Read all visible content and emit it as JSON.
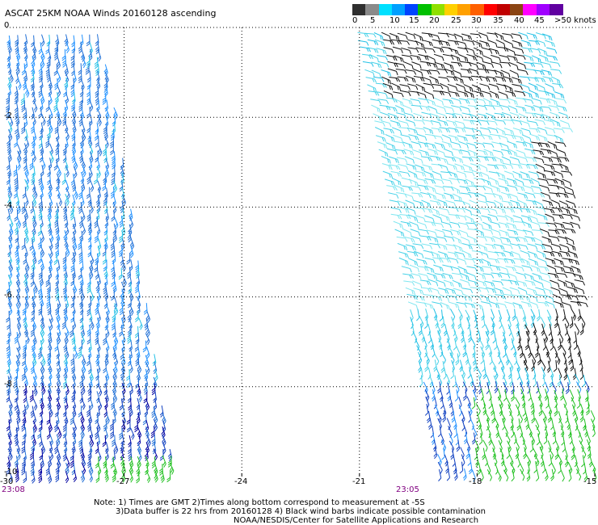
{
  "title": "ASCAT 25KM NOAA Winds 20160128 ascending",
  "colorbar": {
    "labels": [
      "0",
      "5",
      "10",
      "15",
      "20",
      "25",
      "30",
      "35",
      "40",
      "45",
      ">50 knots"
    ],
    "colors": [
      "#2f2f2f",
      "#8a8a8a",
      "#00e0ff",
      "#00a0ff",
      "#0044ff",
      "#00c000",
      "#90e000",
      "#ffd000",
      "#ffa000",
      "#ff6000",
      "#ff0000",
      "#c00000",
      "#8b4513",
      "#ff00ff",
      "#a000ff",
      "#6000a0"
    ]
  },
  "x_axis": {
    "ticks": [
      "-30",
      "-27",
      "-24",
      "-21",
      "-18",
      "-15"
    ]
  },
  "y_axis": {
    "ticks": [
      "0",
      "-2",
      "-4",
      "-6",
      "-8",
      "-10"
    ]
  },
  "times": {
    "left": "23:08",
    "right": "23:05"
  },
  "notes": [
    "Note: 1) Times are GMT 2)Times along bottom correspond to measurement at -5S",
    "3)Data buffer is 22 hrs from 20160128 4) Black wind barbs indicate possible contamination",
    "NOAA/NESDIS/Center for Satellite Applications and Research"
  ],
  "map": {
    "lon_range": [
      -30,
      -15
    ],
    "lat_range": [
      -10,
      0
    ],
    "grid": "dotted"
  },
  "swaths": [
    {
      "name": "left",
      "speed_colors": [
        "#1f6fd6",
        "#1e90ff",
        "#22c0e6",
        "#1040c0",
        "#0000a0",
        "#20c020"
      ]
    },
    {
      "name": "right",
      "speed_colors": [
        "#7fe6f0",
        "#48d2e8",
        "#22c0e6",
        "#1e90ff",
        "#1040c0",
        "#20c020",
        "#111111"
      ]
    }
  ]
}
